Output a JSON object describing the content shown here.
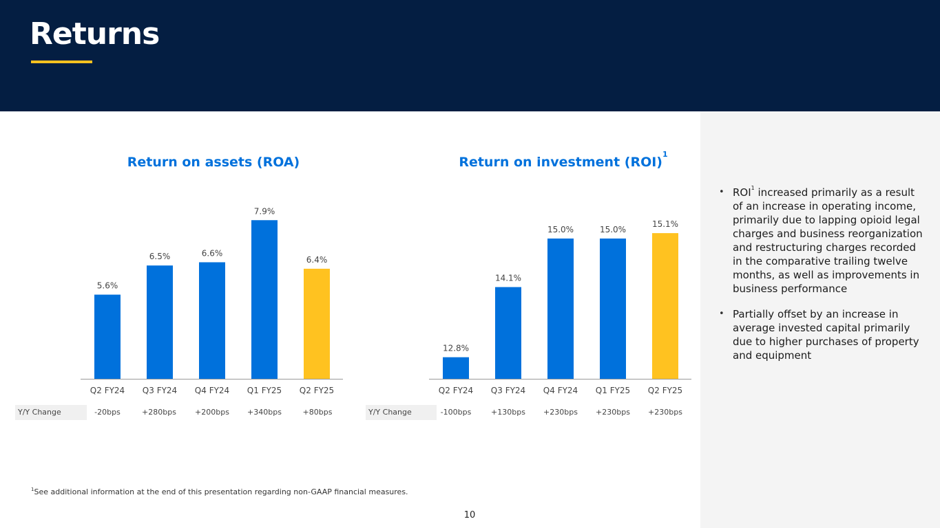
{
  "header": {
    "title": "Returns"
  },
  "colors": {
    "navy": "#041e42",
    "blue": "#0071dc",
    "yellow": "#ffc220",
    "panel": "#f4f4f4"
  },
  "chart_data": [
    {
      "type": "bar",
      "title": "Return on assets (ROA)",
      "categories": [
        "Q2 FY24",
        "Q3 FY24",
        "Q4 FY24",
        "Q1 FY25",
        "Q2 FY25"
      ],
      "values": [
        5.6,
        6.5,
        6.6,
        7.9,
        6.4
      ],
      "labels": [
        "5.6%",
        "6.5%",
        "6.6%",
        "7.9%",
        "6.4%"
      ],
      "highlight_index": 4,
      "ylim": [
        3.0,
        8.5
      ],
      "xlabel": "",
      "ylabel": "",
      "yoy_label": "Y/Y Change",
      "yoy": [
        "-20bps",
        "+280bps",
        "+200bps",
        "+340bps",
        "+80bps"
      ]
    },
    {
      "type": "bar",
      "title": "Return on investment (ROI)",
      "title_sup": "1",
      "categories": [
        "Q2 FY24",
        "Q3 FY24",
        "Q4 FY24",
        "Q1 FY25",
        "Q2 FY25"
      ],
      "values": [
        12.8,
        14.1,
        15.0,
        15.0,
        15.1
      ],
      "labels": [
        "12.8%",
        "14.1%",
        "15.0%",
        "15.0%",
        "15.1%"
      ],
      "highlight_index": 4,
      "ylim": [
        12.4,
        15.7
      ],
      "xlabel": "",
      "ylabel": "",
      "yoy_label": "Y/Y Change",
      "yoy": [
        "-100bps",
        "+130bps",
        "+230bps",
        "+230bps",
        "+230bps"
      ]
    }
  ],
  "side": {
    "bullet1_a": "ROI",
    "bullet1_sup": "1",
    "bullet1_b": " increased primarily as a result of an increase in operating income, primarily due to lapping opioid legal charges and business reorganization and restructuring charges recorded in the comparative trailing twelve months, as well as improvements in business performance",
    "bullet2": "Partially offset by an increase in average invested capital primarily due to higher purchases of property and equipment"
  },
  "footnote": {
    "sup": "1",
    "text": "See additional information at the end of this presentation regarding non-GAAP financial measures."
  },
  "page_number": "10"
}
